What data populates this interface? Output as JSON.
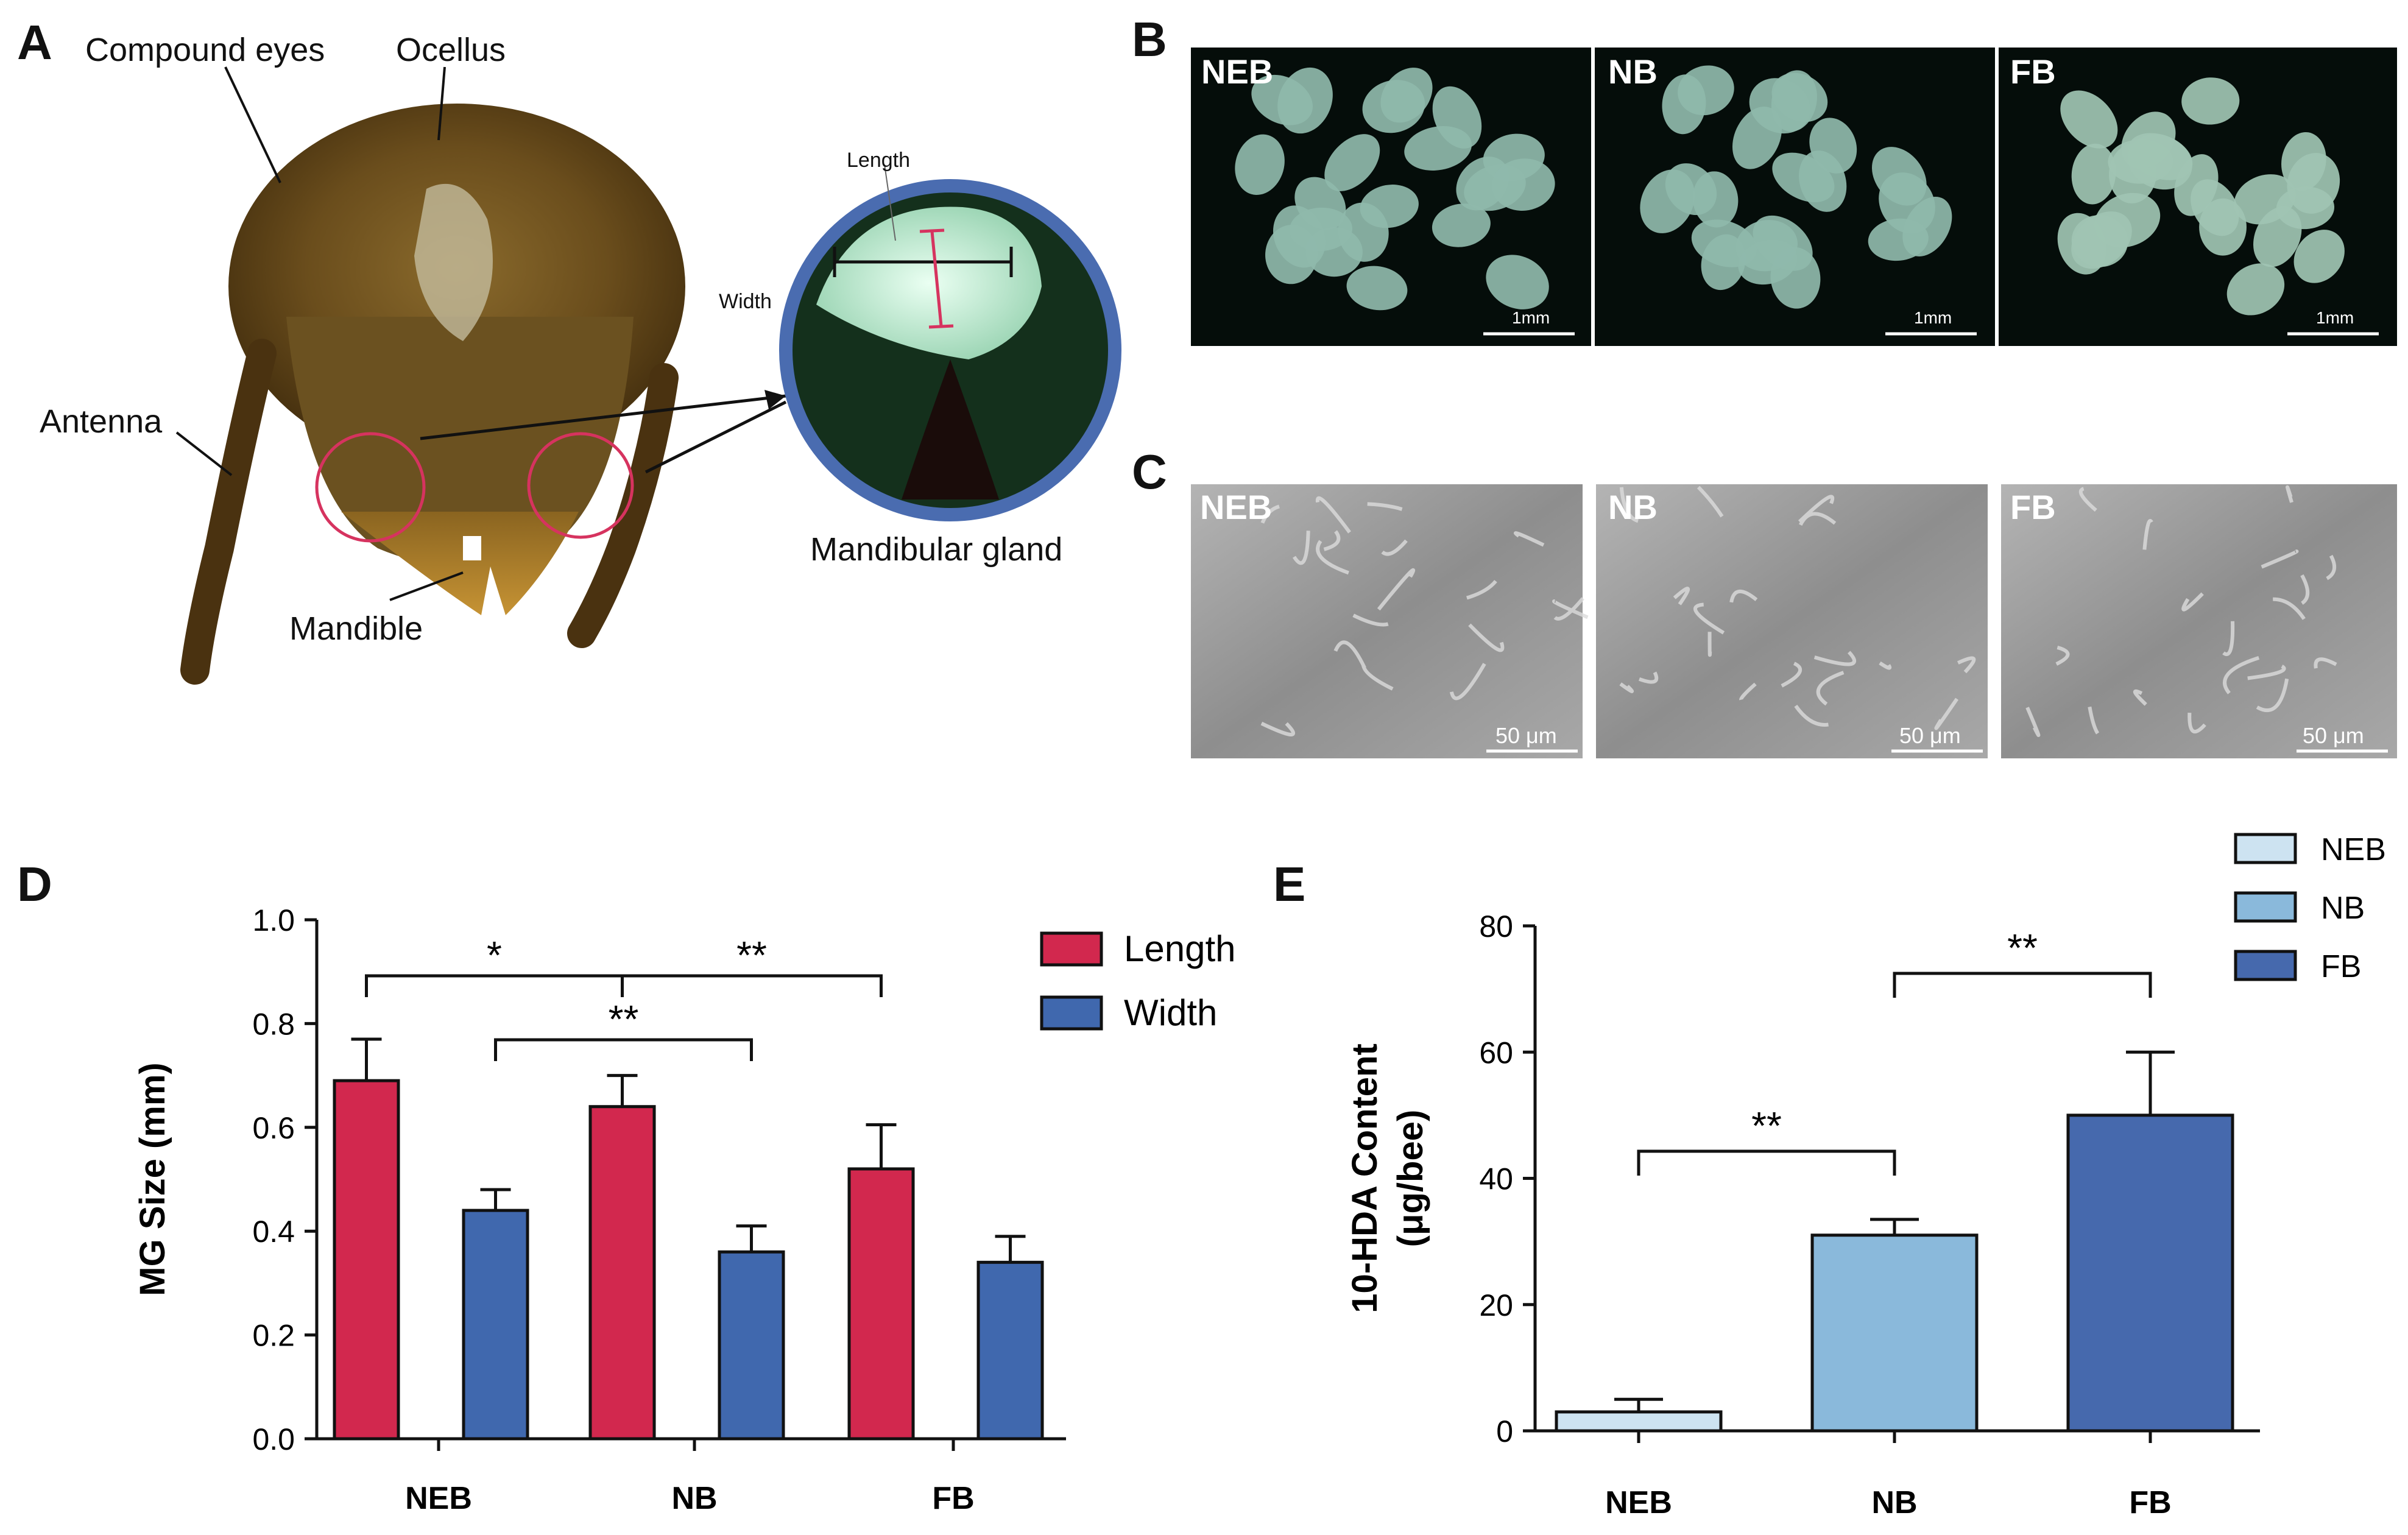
{
  "panels": {
    "A": {
      "letter": "A",
      "labels": {
        "compound_eyes": "Compound eyes",
        "ocellus": "Ocellus",
        "antenna": "Antenna",
        "mandible": "Mandible",
        "mandibular_gland": "Mandibular gland",
        "length": "Length",
        "width": "Width"
      }
    },
    "B": {
      "letter": "B",
      "images": [
        {
          "tag": "NEB",
          "scale": "1mm"
        },
        {
          "tag": "NB",
          "scale": "1mm"
        },
        {
          "tag": "FB",
          "scale": "1mm"
        }
      ]
    },
    "C": {
      "letter": "C",
      "images": [
        {
          "tag": "NEB",
          "scale": "50 μm"
        },
        {
          "tag": "NB",
          "scale": "50 μm"
        },
        {
          "tag": "FB",
          "scale": "50 μm"
        }
      ]
    },
    "D": {
      "letter": "D"
    },
    "E": {
      "letter": "E"
    }
  },
  "chart_data": [
    {
      "id": "D",
      "type": "bar",
      "categories": [
        "NEB",
        "NB",
        "FB"
      ],
      "series": [
        {
          "name": "Length",
          "color": "#d2284e",
          "values": [
            0.69,
            0.64,
            0.52
          ],
          "errors": [
            0.08,
            0.06,
            0.085
          ]
        },
        {
          "name": "Width",
          "color": "#4068ae",
          "values": [
            0.44,
            0.36,
            0.34
          ],
          "errors": [
            0.04,
            0.05,
            0.05
          ]
        }
      ],
      "ylabel": "MG Size (mm)",
      "ylim": [
        0,
        1.0
      ],
      "yticks": [
        "0.0",
        "0.2",
        "0.4",
        "0.6",
        "0.8",
        "1.0"
      ],
      "legend": "top-right",
      "significance": [
        {
          "from": "NEB Length",
          "to": "NB Length",
          "label": "*"
        },
        {
          "from": "NB Length",
          "to": "FB Length",
          "label": "**"
        },
        {
          "from": "NEB Width",
          "to": "NB Width",
          "label": "**"
        }
      ]
    },
    {
      "id": "E",
      "type": "bar",
      "categories": [
        "NEB",
        "NB",
        "FB"
      ],
      "series": [
        {
          "name": "10-HDA",
          "values": [
            3,
            31,
            50
          ],
          "errors": [
            2,
            2.5,
            10
          ],
          "colors": [
            "#cde3f1",
            "#8ab9db",
            "#4669ad"
          ]
        }
      ],
      "legend_entries": [
        "NEB",
        "NB",
        "FB"
      ],
      "ylabel": "10-HDA Content",
      "ylabel2": "(μg/bee)",
      "ylim": [
        0,
        80
      ],
      "yticks": [
        "0",
        "20",
        "40",
        "60",
        "80"
      ],
      "legend": "top-right",
      "significance": [
        {
          "from": "NEB",
          "to": "NB",
          "label": "**"
        },
        {
          "from": "NB",
          "to": "FB",
          "label": "**"
        }
      ]
    }
  ]
}
